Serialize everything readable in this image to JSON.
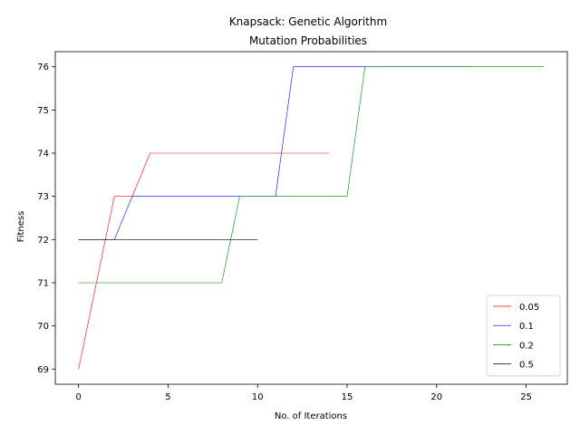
{
  "chart_data": {
    "type": "line",
    "title": [
      "Knapsack: Genetic Algorithm",
      "Mutation Probabilities"
    ],
    "xlabel": "No. of Iterations",
    "ylabel": "Fitness",
    "xlim": [
      -1.3,
      27.3
    ],
    "ylim": [
      68.65,
      76.35
    ],
    "xticks": [
      0,
      5,
      10,
      15,
      20,
      25
    ],
    "yticks": [
      69,
      70,
      71,
      72,
      73,
      74,
      75,
      76
    ],
    "grid": false,
    "legend_position": "lower-right",
    "series": [
      {
        "name": "0.05",
        "color": "#ff0000",
        "x": [
          0,
          1,
          2,
          3,
          4,
          5,
          6,
          7,
          8,
          9,
          10,
          11,
          12,
          13,
          14
        ],
        "y": [
          69,
          71,
          73,
          73,
          74,
          74,
          74,
          74,
          74,
          74,
          74,
          74,
          74,
          74,
          74
        ]
      },
      {
        "name": "0.1",
        "color": "#0000ff",
        "x": [
          0,
          1,
          2,
          3,
          4,
          5,
          6,
          7,
          8,
          9,
          10,
          11,
          12,
          13,
          14,
          15,
          16,
          17,
          18,
          19,
          20,
          21,
          22
        ],
        "y": [
          72,
          72,
          72,
          73,
          73,
          73,
          73,
          73,
          73,
          73,
          73,
          73,
          76,
          76,
          76,
          76,
          76,
          76,
          76,
          76,
          76,
          76,
          76
        ]
      },
      {
        "name": "0.2",
        "color": "#008000",
        "x": [
          0,
          1,
          2,
          3,
          4,
          5,
          6,
          7,
          8,
          9,
          10,
          11,
          12,
          13,
          14,
          15,
          16,
          17,
          18,
          19,
          20,
          21,
          22,
          23,
          24,
          25,
          26
        ],
        "y": [
          71,
          71,
          71,
          71,
          71,
          71,
          71,
          71,
          71,
          73,
          73,
          73,
          73,
          73,
          73,
          73,
          76,
          76,
          76,
          76,
          76,
          76,
          76,
          76,
          76,
          76,
          76
        ]
      },
      {
        "name": "0.5",
        "color": "#000000",
        "x": [
          0,
          1,
          2,
          3,
          4,
          5,
          6,
          7,
          8,
          9,
          10
        ],
        "y": [
          72,
          72,
          72,
          72,
          72,
          72,
          72,
          72,
          72,
          72,
          72
        ]
      }
    ]
  }
}
